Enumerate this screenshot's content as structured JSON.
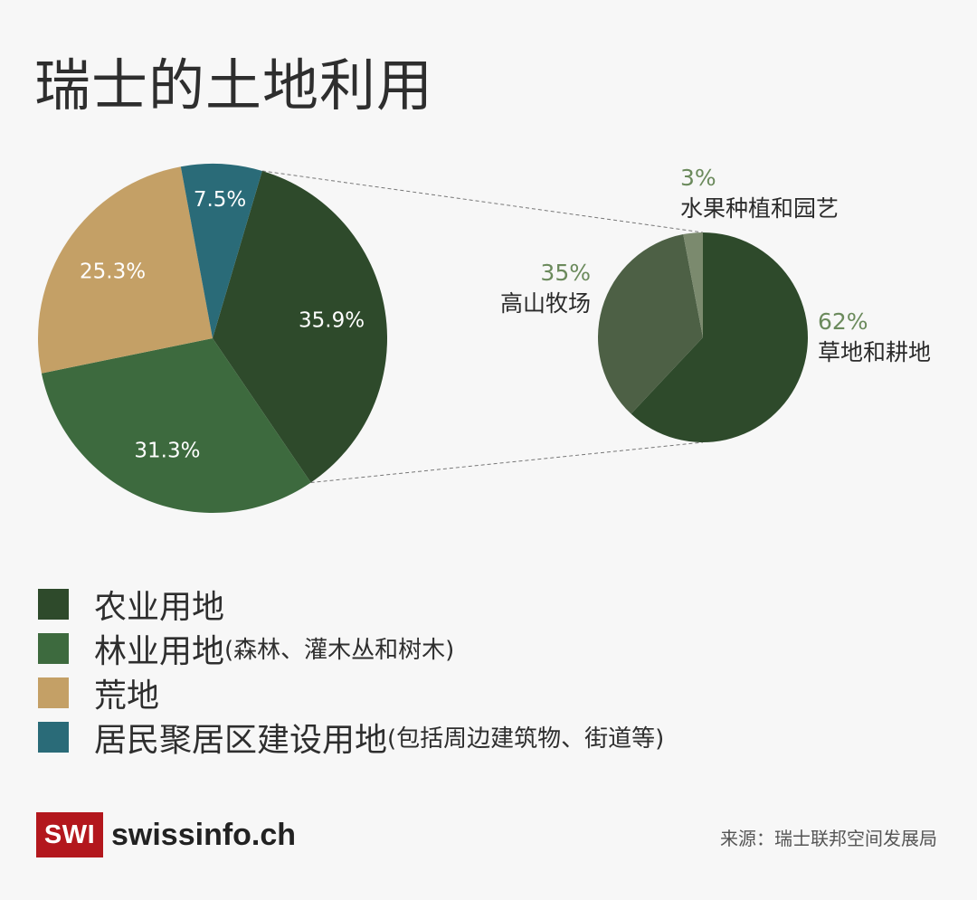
{
  "title": "瑞士的土地利用",
  "chart_data": [
    {
      "type": "pie",
      "title": "瑞士的土地利用",
      "slices": [
        {
          "key": "agri",
          "label": "农业用地",
          "value": 35.9,
          "display": "35.9%",
          "color": "#2e4a2b"
        },
        {
          "key": "forest",
          "label": "林业用地",
          "value": 31.3,
          "display": "31.3%",
          "color": "#3d6a3e"
        },
        {
          "key": "waste",
          "label": "荒地",
          "value": 25.3,
          "display": "25.3%",
          "color": "#c4a066"
        },
        {
          "key": "settle",
          "label": "居民聚居区建设用地",
          "value": 7.5,
          "display": "7.5%",
          "color": "#2a6b78"
        }
      ]
    },
    {
      "type": "pie",
      "title": "农业用地",
      "slices": [
        {
          "key": "meadow",
          "label": "草地和耕地",
          "value": 62,
          "display": "62%",
          "color": "#2e4a2b"
        },
        {
          "key": "alpine",
          "label": "高山牧场",
          "value": 35,
          "display": "35%",
          "color": "#4d6045"
        },
        {
          "key": "fruit",
          "label": "水果种植和园艺",
          "value": 3,
          "display": "3%",
          "color": "#7b8a6e"
        }
      ]
    }
  ],
  "legend": [
    {
      "name": "农业用地",
      "note": "",
      "color": "#2e4a2b"
    },
    {
      "name": "林业用地",
      "note": "(森林、灌木丛和树木)",
      "color": "#3d6a3e"
    },
    {
      "name": "荒地",
      "note": "",
      "color": "#c4a066"
    },
    {
      "name": "居民聚居区建设用地",
      "note": "(包括周边建筑物、街道等)",
      "color": "#2a6b78"
    }
  ],
  "colors": {
    "background": "#f7f7f7",
    "percent_accent": "#6b8a5c",
    "logo_red": "#b3171d"
  },
  "logo": {
    "badge": "SWI",
    "text": "swissinfo.ch"
  },
  "source": "来源：瑞士联邦空间发展局"
}
